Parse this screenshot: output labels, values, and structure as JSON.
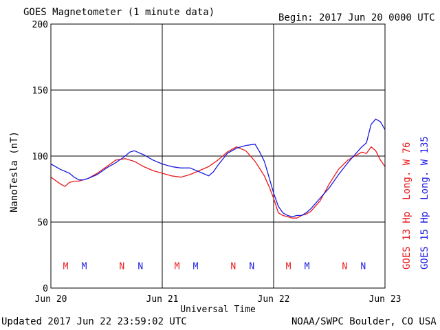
{
  "chart_data": {
    "type": "line",
    "title": "GOES Magnetometer (1 minute data)",
    "begin_label": "Begin:  2017 Jun 20 0000 UTC",
    "xlabel": "Universal Time",
    "ylabel": "NanoTesla (nT)",
    "x_ticks": [
      "Jun 20",
      "Jun 21",
      "Jun 22",
      "Jun 23"
    ],
    "y_ticks": [
      "0",
      "50",
      "100",
      "150",
      "200"
    ],
    "xlim": [
      0,
      72
    ],
    "x_unit": "hours since 2017 Jun 20 0000 UTC",
    "ylim": [
      0,
      200
    ],
    "grid": true,
    "series": [
      {
        "name": "GOES 13 Hp  Long. W 76",
        "color": "#e8191c",
        "x": [
          0,
          2,
          3,
          4,
          5,
          6,
          8,
          10,
          12,
          14,
          16,
          18,
          20,
          22,
          24,
          26,
          28,
          30,
          32,
          34,
          36,
          38,
          40,
          42,
          44,
          46,
          47,
          48,
          49,
          50,
          51,
          52,
          53,
          54,
          55,
          56,
          58,
          60,
          62,
          64,
          66,
          67,
          68,
          69,
          70,
          71,
          72
        ],
        "values": [
          84,
          79,
          77,
          80,
          81,
          81,
          83,
          87,
          92,
          97,
          98,
          96,
          92,
          89,
          87,
          85,
          84,
          86,
          89,
          92,
          97,
          103,
          107,
          104,
          96,
          85,
          77,
          68,
          57,
          55,
          54,
          53,
          53,
          55,
          56,
          58,
          66,
          79,
          90,
          97,
          101,
          103,
          102,
          107,
          104,
          97,
          92
        ]
      },
      {
        "name": "GOES 15 Hp  Long. W 135",
        "color": "#1a1ae0",
        "x": [
          0,
          2,
          4,
          5,
          6,
          7,
          8,
          10,
          12,
          14,
          16,
          17,
          18,
          20,
          22,
          24,
          26,
          28,
          30,
          32,
          34,
          35,
          36,
          38,
          40,
          42,
          44,
          45,
          46,
          47,
          48,
          49,
          50,
          51,
          52,
          53,
          54,
          55,
          56,
          58,
          60,
          62,
          64,
          66,
          67,
          68,
          69,
          70,
          71,
          72
        ],
        "values": [
          94,
          90,
          87,
          84,
          82,
          82,
          83,
          86,
          91,
          95,
          100,
          103,
          104,
          101,
          97,
          94,
          92,
          91,
          91,
          88,
          85,
          88,
          93,
          102,
          106,
          108,
          109,
          103,
          96,
          84,
          72,
          62,
          57,
          55,
          54,
          55,
          55,
          57,
          60,
          68,
          76,
          86,
          95,
          103,
          107,
          110,
          124,
          128,
          126,
          120
        ]
      }
    ],
    "markers": {
      "series1_color": "#e8191c",
      "series2_color": "#1a1ae0",
      "y": 17,
      "items": [
        {
          "label": "M",
          "x": 3.2,
          "series": 1
        },
        {
          "label": "M",
          "x": 7.2,
          "series": 2
        },
        {
          "label": "N",
          "x": 15.3,
          "series": 1
        },
        {
          "label": "N",
          "x": 19.3,
          "series": 2
        },
        {
          "label": "M",
          "x": 27.2,
          "series": 1
        },
        {
          "label": "M",
          "x": 31.2,
          "series": 2
        },
        {
          "label": "N",
          "x": 39.3,
          "series": 1
        },
        {
          "label": "N",
          "x": 43.3,
          "series": 2
        },
        {
          "label": "M",
          "x": 51.2,
          "series": 1
        },
        {
          "label": "M",
          "x": 55.2,
          "series": 2
        },
        {
          "label": "N",
          "x": 63.3,
          "series": 1
        },
        {
          "label": "N",
          "x": 67.3,
          "series": 2
        }
      ]
    },
    "legend_placement": "right, vertical"
  },
  "footer": {
    "updated": "Updated 2017 Jun 22 23:59:02 UTC",
    "credit": "NOAA/SWPC Boulder, CO USA"
  }
}
